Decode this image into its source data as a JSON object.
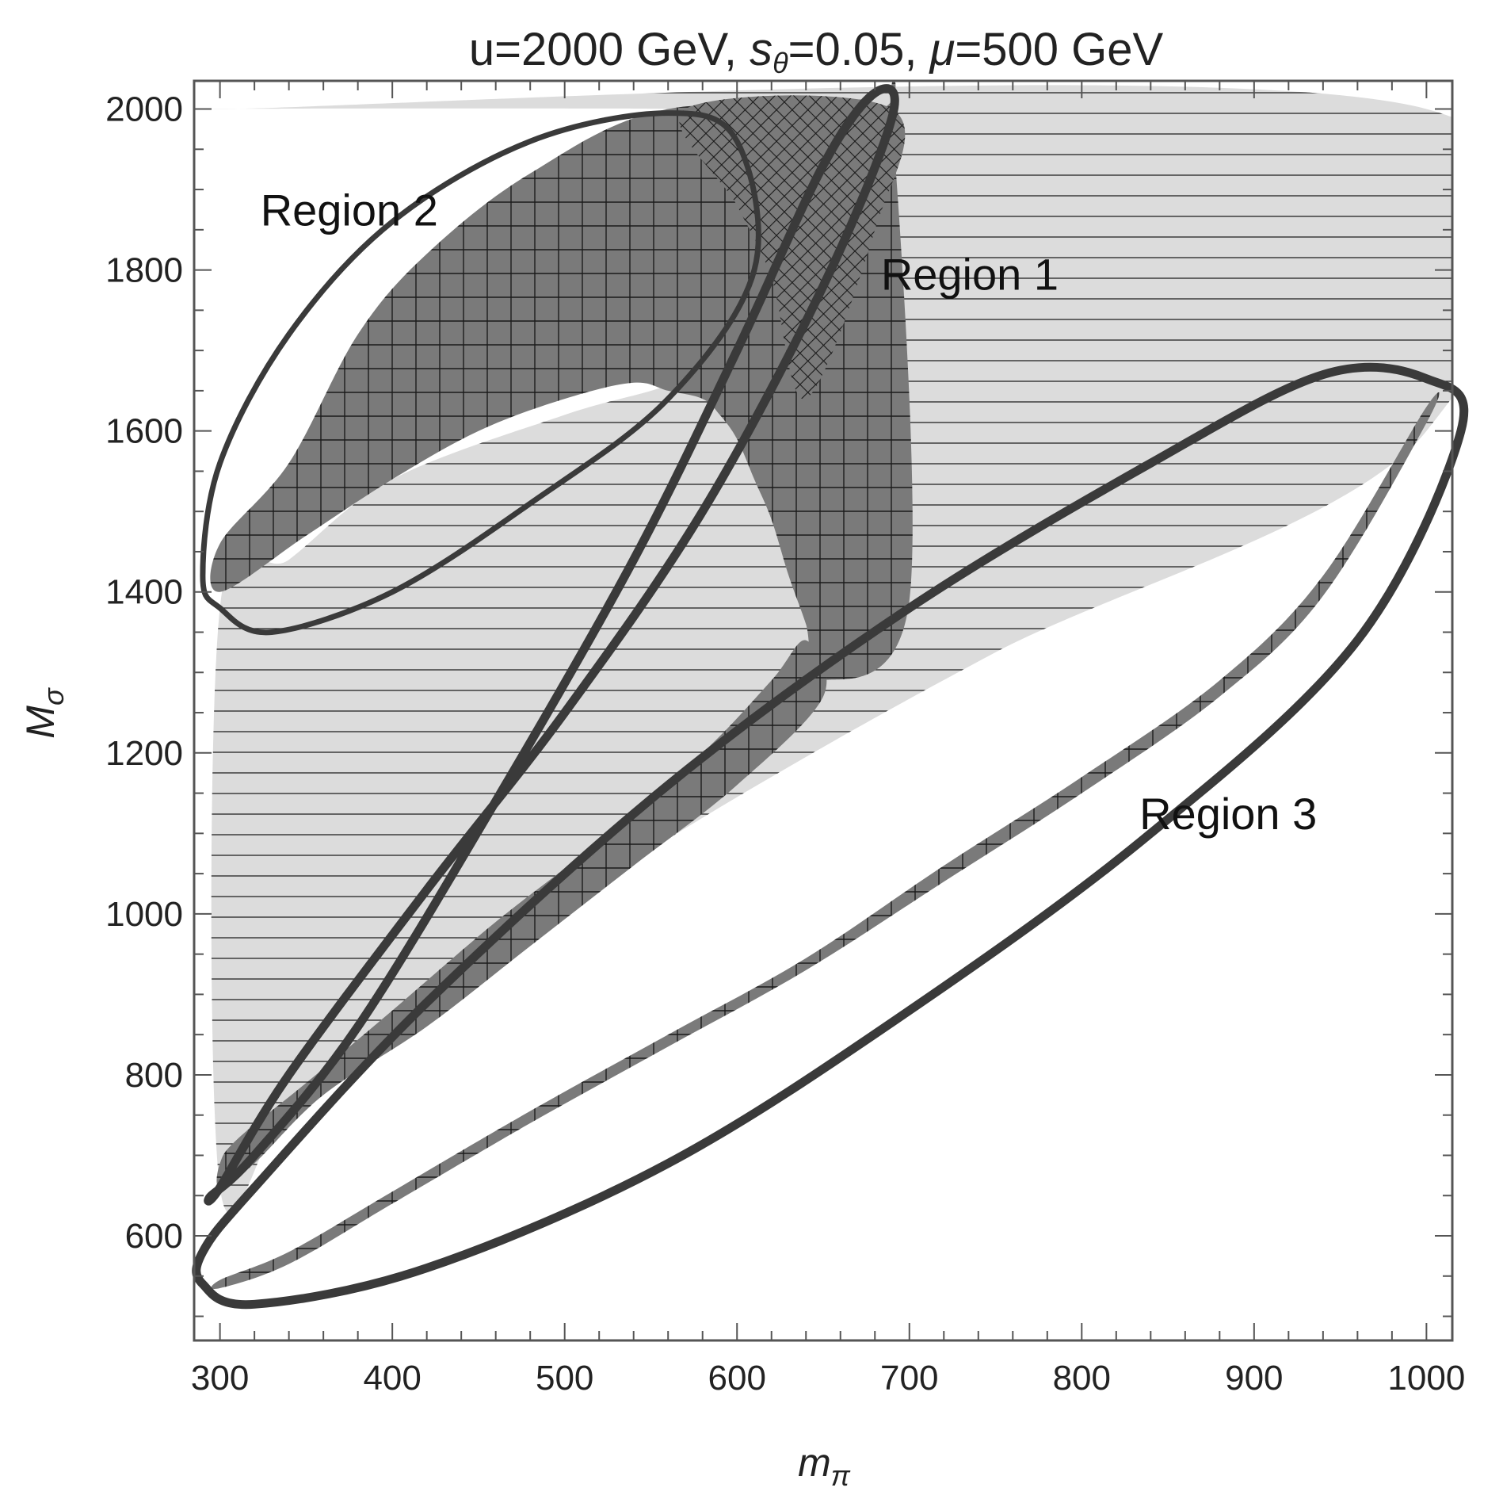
{
  "chart_data": {
    "type": "area",
    "title": {
      "prefix": "u=2000 GeV, ",
      "s_symbol": "s",
      "s_subscript": "θ",
      "s_value": "=0.05, ",
      "mu_symbol": "μ",
      "mu_value": "=500 GeV"
    },
    "xlabel": {
      "symbol": "m",
      "subscript": "π"
    },
    "ylabel": {
      "symbol": "M",
      "subscript": "σ"
    },
    "xlim": [
      285,
      1015
    ],
    "ylim": [
      470,
      2035
    ],
    "x_ticks": [
      300,
      400,
      500,
      600,
      700,
      800,
      900,
      1000
    ],
    "y_ticks": [
      600,
      800,
      1000,
      1200,
      1400,
      1600,
      1800,
      2000
    ],
    "x_minor_step": 20,
    "y_minor_step": 50,
    "grid": false,
    "colors": {
      "light_region": "#dcdcdc",
      "dark_region": "#7a7a7a",
      "hatch": "#222222",
      "ellipse": "#3a3a3a",
      "frame": "#555555"
    },
    "regions": [
      {
        "name": "light-allowed-region",
        "fill": "light",
        "hatch": "horizontal",
        "polygon": [
          [
            300,
            2000
          ],
          [
            1000,
            2000
          ],
          [
            1000,
            1600
          ],
          [
            750,
            1325
          ],
          [
            600,
            1145
          ],
          [
            500,
            1010
          ],
          [
            400,
            865
          ],
          [
            340,
            765
          ],
          [
            300,
            660
          ],
          [
            300,
            1380
          ],
          [
            340,
            1440
          ],
          [
            400,
            1540
          ],
          [
            500,
            1620
          ],
          [
            560,
            1658
          ],
          [
            560,
            1690
          ],
          [
            600,
            1700
          ],
          [
            620,
            1760
          ],
          [
            560,
            1990
          ],
          [
            560,
            2000
          ]
        ]
      },
      {
        "name": "upper-dark-band",
        "fill": "dark",
        "hatch": "grid",
        "polygon": [
          [
            300,
            1400
          ],
          [
            350,
            1470
          ],
          [
            400,
            1540
          ],
          [
            450,
            1600
          ],
          [
            500,
            1640
          ],
          [
            540,
            1660
          ],
          [
            560,
            1650
          ],
          [
            580,
            1640
          ],
          [
            590,
            1620
          ],
          [
            600,
            1590
          ],
          [
            610,
            1540
          ],
          [
            620,
            1490
          ],
          [
            630,
            1420
          ],
          [
            640,
            1360
          ],
          [
            650,
            1290
          ],
          [
            700,
            1390
          ],
          [
            690,
            1990
          ],
          [
            680,
            2000
          ],
          [
            560,
            2000
          ],
          [
            480,
            1920
          ],
          [
            420,
            1820
          ],
          [
            380,
            1720
          ],
          [
            340,
            1560
          ],
          [
            300,
            1460
          ]
        ]
      },
      {
        "name": "upper-crosshatch-lens",
        "fill": "dark",
        "hatch": "cross",
        "polygon": [
          [
            570,
            2000
          ],
          [
            690,
            2000
          ],
          [
            680,
            1850
          ],
          [
            640,
            1640
          ],
          [
            620,
            1790
          ],
          [
            600,
            1880
          ]
        ]
      },
      {
        "name": "left-diagonal-band",
        "fill": "dark",
        "hatch": "grid",
        "polygon": [
          [
            300,
            660
          ],
          [
            320,
            690
          ],
          [
            360,
            775
          ],
          [
            420,
            860
          ],
          [
            480,
            960
          ],
          [
            540,
            1060
          ],
          [
            600,
            1160
          ],
          [
            650,
            1270
          ],
          [
            640,
            1340
          ],
          [
            620,
            1290
          ],
          [
            580,
            1200
          ],
          [
            520,
            1090
          ],
          [
            460,
            990
          ],
          [
            400,
            880
          ],
          [
            350,
            790
          ],
          [
            310,
            720
          ],
          [
            300,
            690
          ]
        ]
      },
      {
        "name": "lower-diagonal-band",
        "fill": "dark",
        "hatch": "grid",
        "polygon": [
          [
            300,
            545
          ],
          [
            340,
            580
          ],
          [
            400,
            655
          ],
          [
            480,
            755
          ],
          [
            560,
            850
          ],
          [
            640,
            945
          ],
          [
            720,
            1060
          ],
          [
            800,
            1170
          ],
          [
            880,
            1290
          ],
          [
            940,
            1420
          ],
          [
            1000,
            1630
          ],
          [
            1000,
            1610
          ],
          [
            940,
            1395
          ],
          [
            880,
            1270
          ],
          [
            800,
            1150
          ],
          [
            720,
            1040
          ],
          [
            640,
            930
          ],
          [
            560,
            835
          ],
          [
            480,
            740
          ],
          [
            400,
            640
          ],
          [
            340,
            565
          ],
          [
            300,
            535
          ]
        ]
      }
    ],
    "ellipses": [
      {
        "name": "ellipse-region-1",
        "stroke_weight": "thick",
        "points": [
          [
            300,
            660
          ],
          [
            340,
            800
          ],
          [
            420,
            1030
          ],
          [
            500,
            1250
          ],
          [
            580,
            1500
          ],
          [
            650,
            1780
          ],
          [
            690,
            1990
          ],
          [
            680,
            2020
          ],
          [
            650,
            1930
          ],
          [
            600,
            1700
          ],
          [
            540,
            1440
          ],
          [
            460,
            1140
          ],
          [
            380,
            860
          ],
          [
            320,
            700
          ],
          [
            295,
            650
          ]
        ]
      },
      {
        "name": "ellipse-region-2",
        "stroke_weight": "normal",
        "points": [
          [
            300,
            1380
          ],
          [
            330,
            1350
          ],
          [
            400,
            1400
          ],
          [
            480,
            1510
          ],
          [
            560,
            1640
          ],
          [
            610,
            1800
          ],
          [
            600,
            1960
          ],
          [
            560,
            1995
          ],
          [
            480,
            1960
          ],
          [
            400,
            1860
          ],
          [
            340,
            1720
          ],
          [
            300,
            1560
          ],
          [
            290,
            1420
          ]
        ]
      },
      {
        "name": "ellipse-region-3",
        "stroke_weight": "thick",
        "points": [
          [
            290,
            540
          ],
          [
            320,
            515
          ],
          [
            420,
            560
          ],
          [
            560,
            690
          ],
          [
            700,
            880
          ],
          [
            840,
            1100
          ],
          [
            960,
            1340
          ],
          [
            1020,
            1600
          ],
          [
            1000,
            1665
          ],
          [
            940,
            1670
          ],
          [
            840,
            1560
          ],
          [
            700,
            1380
          ],
          [
            560,
            1160
          ],
          [
            420,
            890
          ],
          [
            320,
            660
          ],
          [
            290,
            580
          ]
        ]
      }
    ],
    "labels": [
      {
        "name": "label-region-2",
        "text": "Region 2",
        "x": 375,
        "y": 1875
      },
      {
        "name": "label-region-1",
        "text": "Region 1",
        "x": 735,
        "y": 1795
      },
      {
        "name": "label-region-3",
        "text": "Region 3",
        "x": 885,
        "y": 1125
      }
    ]
  }
}
